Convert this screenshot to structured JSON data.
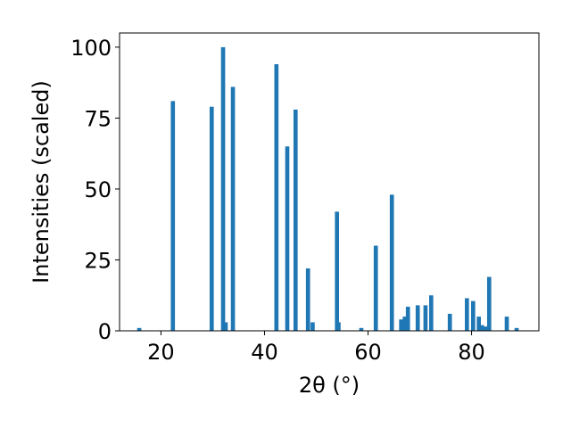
{
  "chart_data": {
    "type": "bar",
    "xlabel": "2θ (°)",
    "ylabel": "Intensities (scaled)",
    "xlim": [
      12,
      93
    ],
    "ylim": [
      0,
      105
    ],
    "xticks": [
      20,
      40,
      60,
      80
    ],
    "yticks": [
      0,
      25,
      50,
      75,
      100
    ],
    "grid": false,
    "bar_color": "#1f77b4",
    "bar_width": 0.8,
    "series": [
      {
        "x": [
          15.8,
          22.3,
          29.8,
          32.0,
          32.5,
          33.9,
          42.3,
          44.4,
          46.0,
          48.4,
          49.3,
          54.0,
          54.3,
          58.7,
          61.5,
          64.6,
          66.4,
          67.1,
          67.7,
          69.6,
          71.1,
          72.2,
          75.8,
          79.1,
          80.3,
          81.4,
          82.0,
          82.7,
          83.4,
          86.8,
          88.7
        ],
        "values": [
          1,
          81,
          79,
          100,
          3,
          86,
          94,
          65,
          78,
          22,
          3,
          42,
          3,
          1,
          30,
          48,
          4,
          5,
          8.5,
          9,
          9,
          12.5,
          6,
          11.5,
          10.5,
          5,
          2,
          1.5,
          19,
          5,
          1
        ]
      }
    ]
  }
}
